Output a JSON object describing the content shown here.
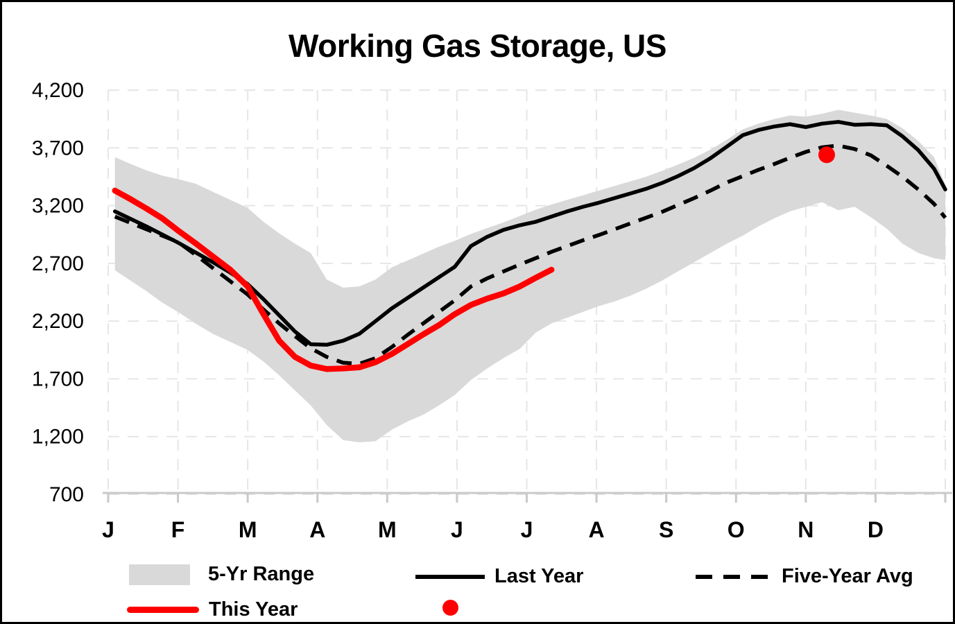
{
  "chart_data": {
    "type": "line",
    "title": "Working Gas Storage, US",
    "xlabel": "",
    "ylabel": "",
    "grid": true,
    "y_axis": {
      "min": 700,
      "max": 4200,
      "step": 500,
      "tick_labels": [
        "4,200",
        "3,700",
        "3,200",
        "2,700",
        "2,200",
        "1,700",
        "1,200",
        "700"
      ]
    },
    "x_axis": {
      "month_labels": [
        "J",
        "F",
        "M",
        "A",
        "M",
        "J",
        "J",
        "A",
        "S",
        "O",
        "N",
        "D"
      ]
    },
    "weeks": {
      "start_day": 3,
      "step_days": 7,
      "count": 52,
      "extra_final_day": 365
    },
    "colors": {
      "this_year": "#FF0000",
      "last_year": "#000000",
      "five_year_avg": "#000000",
      "range_fill": "#D9D9D9",
      "gridline": "#E6E6E6",
      "axis": "#C9C9C9"
    },
    "series": [
      {
        "name": "5-Yr Range",
        "type": "band",
        "color": "#D9D9D9",
        "max": [
          3620,
          3560,
          3505,
          3460,
          3430,
          3390,
          3320,
          3250,
          3180,
          3060,
          2960,
          2870,
          2790,
          2560,
          2490,
          2500,
          2560,
          2665,
          2725,
          2785,
          2845,
          2895,
          2955,
          3005,
          3055,
          3110,
          3165,
          3210,
          3250,
          3290,
          3330,
          3370,
          3410,
          3450,
          3500,
          3555,
          3615,
          3685,
          3770,
          3860,
          3910,
          3950,
          3980,
          3970,
          3995,
          4030,
          4005,
          3980,
          3950,
          3870,
          3760,
          3620,
          3380
        ],
        "min": [
          2640,
          2550,
          2460,
          2360,
          2280,
          2180,
          2090,
          2020,
          1950,
          1850,
          1730,
          1600,
          1470,
          1300,
          1170,
          1150,
          1160,
          1260,
          1330,
          1390,
          1470,
          1560,
          1690,
          1790,
          1880,
          1960,
          2100,
          2180,
          2230,
          2280,
          2330,
          2370,
          2420,
          2480,
          2550,
          2630,
          2710,
          2790,
          2870,
          2940,
          3020,
          3090,
          3150,
          3190,
          3230,
          3160,
          3190,
          3100,
          3000,
          2870,
          2790,
          2745,
          2730
        ]
      },
      {
        "name": "Last Year",
        "type": "line",
        "style": "solid",
        "color": "#000000",
        "values": [
          3150,
          3085,
          3020,
          2950,
          2880,
          2795,
          2710,
          2620,
          2520,
          2390,
          2250,
          2110,
          2000,
          1995,
          2030,
          2090,
          2200,
          2310,
          2400,
          2490,
          2580,
          2670,
          2850,
          2930,
          2990,
          3030,
          3060,
          3105,
          3150,
          3190,
          3225,
          3265,
          3305,
          3345,
          3395,
          3455,
          3525,
          3610,
          3710,
          3810,
          3855,
          3885,
          3905,
          3880,
          3910,
          3925,
          3900,
          3905,
          3895,
          3800,
          3680,
          3520,
          3340
        ]
      },
      {
        "name": "Five-Year Avg",
        "type": "line",
        "style": "dashed",
        "color": "#000000",
        "values": [
          3105,
          3050,
          2995,
          2940,
          2885,
          2775,
          2660,
          2545,
          2430,
          2300,
          2180,
          2070,
          1965,
          1890,
          1840,
          1830,
          1880,
          1975,
          2080,
          2180,
          2280,
          2380,
          2500,
          2570,
          2630,
          2690,
          2745,
          2800,
          2850,
          2900,
          2945,
          2995,
          3045,
          3095,
          3145,
          3205,
          3265,
          3330,
          3400,
          3455,
          3510,
          3560,
          3615,
          3665,
          3705,
          3720,
          3690,
          3635,
          3545,
          3450,
          3340,
          3215,
          3095
        ]
      },
      {
        "name": "This Year",
        "type": "line",
        "style": "solid",
        "color": "#FF0000",
        "values": [
          3330,
          3255,
          3175,
          3090,
          2985,
          2875,
          2760,
          2645,
          2500,
          2260,
          2030,
          1890,
          1815,
          1785,
          1790,
          1800,
          1845,
          1915,
          2000,
          2085,
          2165,
          2260,
          2340,
          2395,
          2440,
          2500,
          2575,
          2645
        ]
      },
      {
        "name": "",
        "type": "point",
        "color": "#FF0000",
        "day": 313,
        "value": 3640
      }
    ],
    "legend": {
      "position": "bottom",
      "items": [
        {
          "label": "5-Yr Range",
          "swatch": "band"
        },
        {
          "label": "Last Year",
          "swatch": "solid-line"
        },
        {
          "label": "Five-Year Avg",
          "swatch": "dashed-line"
        },
        {
          "label": "This Year",
          "swatch": "thick-red-line"
        },
        {
          "label": "",
          "swatch": "dot"
        }
      ]
    }
  }
}
